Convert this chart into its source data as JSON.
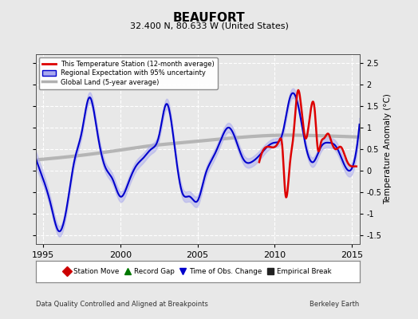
{
  "title": "BEAUFORT",
  "subtitle": "32.400 N, 80.633 W (United States)",
  "ylabel": "Temperature Anomaly (°C)",
  "footer_left": "Data Quality Controlled and Aligned at Breakpoints",
  "footer_right": "Berkeley Earth",
  "xlim": [
    1994.5,
    2015.5
  ],
  "ylim": [
    -1.7,
    2.7
  ],
  "yticks": [
    -1.5,
    -1.0,
    -0.5,
    0.0,
    0.5,
    1.0,
    1.5,
    2.0,
    2.5
  ],
  "xticks": [
    1995,
    2000,
    2005,
    2010,
    2015
  ],
  "bg_color": "#e8e8e8",
  "grid_color": "#ffffff",
  "red_color": "#dd0000",
  "blue_color": "#0000cc",
  "blue_fill_color": "#aaaaee",
  "gray_color": "#b0b0b0",
  "legend_items": [
    "This Temperature Station (12-month average)",
    "Regional Expectation with 95% uncertainty",
    "Global Land (5-year average)"
  ],
  "marker_legend": [
    {
      "label": "Station Move",
      "color": "#cc0000",
      "marker": "D"
    },
    {
      "label": "Record Gap",
      "color": "#007700",
      "marker": "^"
    },
    {
      "label": "Time of Obs. Change",
      "color": "#0000cc",
      "marker": "v"
    },
    {
      "label": "Empirical Break",
      "color": "#222222",
      "marker": "s"
    }
  ],
  "regional_t": [
    1994.5,
    1995.0,
    1995.5,
    1996.0,
    1996.5,
    1997.0,
    1997.5,
    1998.0,
    1998.5,
    1999.0,
    1999.5,
    2000.0,
    2000.5,
    2001.0,
    2001.5,
    2002.0,
    2002.5,
    2003.0,
    2003.5,
    2004.0,
    2004.5,
    2005.0,
    2005.5,
    2006.0,
    2006.5,
    2007.0,
    2007.5,
    2008.0,
    2008.5,
    2009.0,
    2009.5,
    2010.0,
    2010.5,
    2011.0,
    2011.5,
    2012.0,
    2012.5,
    2013.0,
    2013.5,
    2014.0,
    2014.5,
    2015.0
  ],
  "regional_v": [
    0.3,
    -0.2,
    -0.8,
    -1.4,
    -0.9,
    0.2,
    0.9,
    1.7,
    0.9,
    0.1,
    -0.2,
    -0.6,
    -0.3,
    0.1,
    0.3,
    0.5,
    0.8,
    1.55,
    0.6,
    -0.5,
    -0.6,
    -0.7,
    -0.1,
    0.3,
    0.7,
    1.0,
    0.7,
    0.25,
    0.2,
    0.35,
    0.55,
    0.65,
    0.85,
    1.7,
    1.55,
    0.6,
    0.2,
    0.55,
    0.65,
    0.55,
    0.15,
    0.05
  ],
  "regional_unc": [
    0.18,
    0.15,
    0.13,
    0.12,
    0.12,
    0.11,
    0.11,
    0.12,
    0.13,
    0.12,
    0.12,
    0.12,
    0.12,
    0.12,
    0.11,
    0.11,
    0.11,
    0.12,
    0.12,
    0.12,
    0.12,
    0.12,
    0.11,
    0.11,
    0.11,
    0.11,
    0.11,
    0.11,
    0.11,
    0.11,
    0.1,
    0.1,
    0.1,
    0.11,
    0.11,
    0.11,
    0.11,
    0.11,
    0.11,
    0.12,
    0.13,
    0.14
  ],
  "global_t": [
    1994.5,
    1996.0,
    1998.0,
    2000.0,
    2002.0,
    2004.0,
    2006.0,
    2008.0,
    2010.0,
    2012.0,
    2014.0,
    2015.5
  ],
  "global_v": [
    0.25,
    0.3,
    0.38,
    0.48,
    0.58,
    0.65,
    0.72,
    0.78,
    0.82,
    0.82,
    0.8,
    0.78
  ],
  "station_t": [
    2009.0,
    2009.3,
    2009.7,
    2010.0,
    2010.3,
    2010.5,
    2010.7,
    2011.0,
    2011.2,
    2011.5,
    2011.7,
    2012.0,
    2012.3,
    2012.6,
    2012.8,
    2013.0,
    2013.2,
    2013.5,
    2013.7,
    2014.0,
    2014.3,
    2014.6,
    2014.8,
    2015.0,
    2015.3
  ],
  "station_v": [
    0.2,
    0.5,
    0.55,
    0.55,
    0.7,
    0.55,
    -0.55,
    0.2,
    0.75,
    1.85,
    1.55,
    0.75,
    1.3,
    1.4,
    0.5,
    0.65,
    0.75,
    0.85,
    0.65,
    0.5,
    0.55,
    0.3,
    0.15,
    0.1,
    0.1
  ]
}
